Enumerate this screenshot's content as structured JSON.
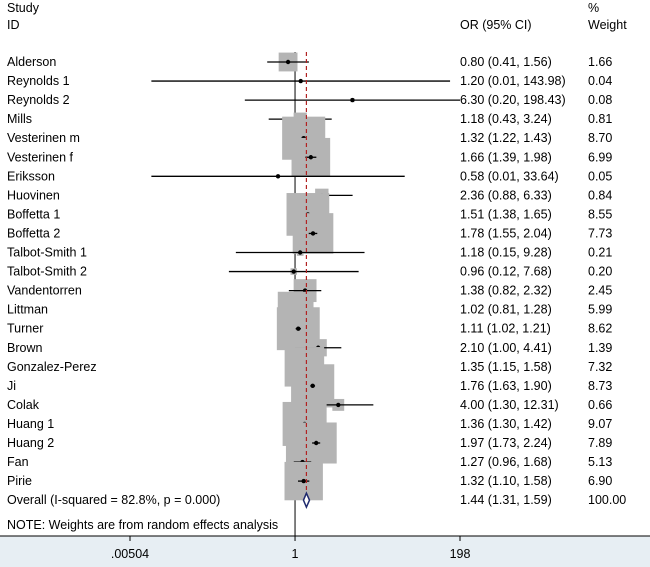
{
  "chart_data": {
    "type": "forest",
    "header": {
      "study_line1": "Study",
      "study_line2": "ID",
      "or_label": "OR (95% CI)",
      "weight_line1": "%",
      "weight_line2": "Weight"
    },
    "studies": [
      {
        "name": "Alderson",
        "or": 0.8,
        "lo": 0.41,
        "hi": 1.56,
        "or_text": "0.80 (0.41, 1.56)",
        "weight": "1.66"
      },
      {
        "name": "Reynolds 1",
        "or": 1.2,
        "lo": 0.01,
        "hi": 143.98,
        "or_text": "1.20 (0.01, 143.98)",
        "weight": "0.04"
      },
      {
        "name": "Reynolds 2",
        "or": 6.3,
        "lo": 0.2,
        "hi": 198.43,
        "or_text": "6.30 (0.20, 198.43)",
        "weight": "0.08"
      },
      {
        "name": "Mills",
        "or": 1.18,
        "lo": 0.43,
        "hi": 3.24,
        "or_text": "1.18 (0.43, 3.24)",
        "weight": "0.81"
      },
      {
        "name": "Vesterinen m",
        "or": 1.32,
        "lo": 1.22,
        "hi": 1.43,
        "or_text": "1.32 (1.22, 1.43)",
        "weight": "8.70"
      },
      {
        "name": "Vesterinen f",
        "or": 1.66,
        "lo": 1.39,
        "hi": 1.98,
        "or_text": "1.66 (1.39, 1.98)",
        "weight": "6.99"
      },
      {
        "name": "Eriksson",
        "or": 0.58,
        "lo": 0.01,
        "hi": 33.64,
        "or_text": "0.58 (0.01, 33.64)",
        "weight": "0.05"
      },
      {
        "name": "Huovinen",
        "or": 2.36,
        "lo": 0.88,
        "hi": 6.33,
        "or_text": "2.36 (0.88, 6.33)",
        "weight": "0.84"
      },
      {
        "name": "Boffetta 1",
        "or": 1.51,
        "lo": 1.38,
        "hi": 1.65,
        "or_text": "1.51 (1.38, 1.65)",
        "weight": "8.55"
      },
      {
        "name": "Boffetta 2",
        "or": 1.78,
        "lo": 1.55,
        "hi": 2.04,
        "or_text": "1.78 (1.55, 2.04)",
        "weight": "7.73"
      },
      {
        "name": "Talbot-Smith 1",
        "or": 1.18,
        "lo": 0.15,
        "hi": 9.28,
        "or_text": "1.18 (0.15, 9.28)",
        "weight": "0.21"
      },
      {
        "name": "Talbot-Smith 2",
        "or": 0.96,
        "lo": 0.12,
        "hi": 7.68,
        "or_text": "0.96 (0.12, 7.68)",
        "weight": "0.20"
      },
      {
        "name": "Vandentorren",
        "or": 1.38,
        "lo": 0.82,
        "hi": 2.32,
        "or_text": "1.38 (0.82, 2.32)",
        "weight": "2.45"
      },
      {
        "name": "Littman",
        "or": 1.02,
        "lo": 0.81,
        "hi": 1.28,
        "or_text": "1.02 (0.81, 1.28)",
        "weight": "5.99"
      },
      {
        "name": "Turner",
        "or": 1.11,
        "lo": 1.02,
        "hi": 1.21,
        "or_text": "1.11 (1.02, 1.21)",
        "weight": "8.62"
      },
      {
        "name": "Brown",
        "or": 2.1,
        "lo": 1.0,
        "hi": 4.41,
        "or_text": "2.10 (1.00, 4.41)",
        "weight": "1.39"
      },
      {
        "name": "Gonzalez-Perez",
        "or": 1.35,
        "lo": 1.15,
        "hi": 1.58,
        "or_text": "1.35 (1.15, 1.58)",
        "weight": "7.32"
      },
      {
        "name": "Ji",
        "or": 1.76,
        "lo": 1.63,
        "hi": 1.9,
        "or_text": "1.76 (1.63, 1.90)",
        "weight": "8.73"
      },
      {
        "name": "Colak",
        "or": 4.0,
        "lo": 1.3,
        "hi": 12.31,
        "or_text": "4.00 (1.30, 12.31)",
        "weight": "0.66"
      },
      {
        "name": "Huang 1",
        "or": 1.36,
        "lo": 1.3,
        "hi": 1.42,
        "or_text": "1.36 (1.30, 1.42)",
        "weight": "9.07"
      },
      {
        "name": "Huang 2",
        "or": 1.97,
        "lo": 1.73,
        "hi": 2.24,
        "or_text": "1.97 (1.73, 2.24)",
        "weight": "7.89"
      },
      {
        "name": "Fan",
        "or": 1.27,
        "or_text": "1.27 (0.96, 1.68)",
        "lo": 0.96,
        "hi": 1.68,
        "weight": "5.13"
      },
      {
        "name": "Pirie",
        "or": 1.32,
        "lo": 1.1,
        "hi": 1.58,
        "or_text": "1.32 (1.10, 1.58)",
        "weight": "6.90"
      }
    ],
    "overall": {
      "label": "Overall  (I-squared = 82.8%, p = 0.000)",
      "or": 1.44,
      "lo": 1.31,
      "hi": 1.59,
      "or_text": "1.44 (1.31, 1.59)",
      "weight": "100.00"
    },
    "note": "NOTE: Weights are from random effects analysis",
    "x_axis": {
      "scale": "log",
      "min": 0.00504,
      "max": 198,
      "ticks": [
        {
          "value": 0.00504,
          "label": ".00504"
        },
        {
          "value": 1,
          "label": "1"
        },
        {
          "value": 198,
          "label": "198"
        }
      ]
    },
    "null_line": 1,
    "colors": {
      "box": "#b4b4b4",
      "ci": "#000000",
      "overall_line": "#b22222",
      "diamond": "#1f2a6e",
      "axis_band": "#e7eef3"
    }
  }
}
